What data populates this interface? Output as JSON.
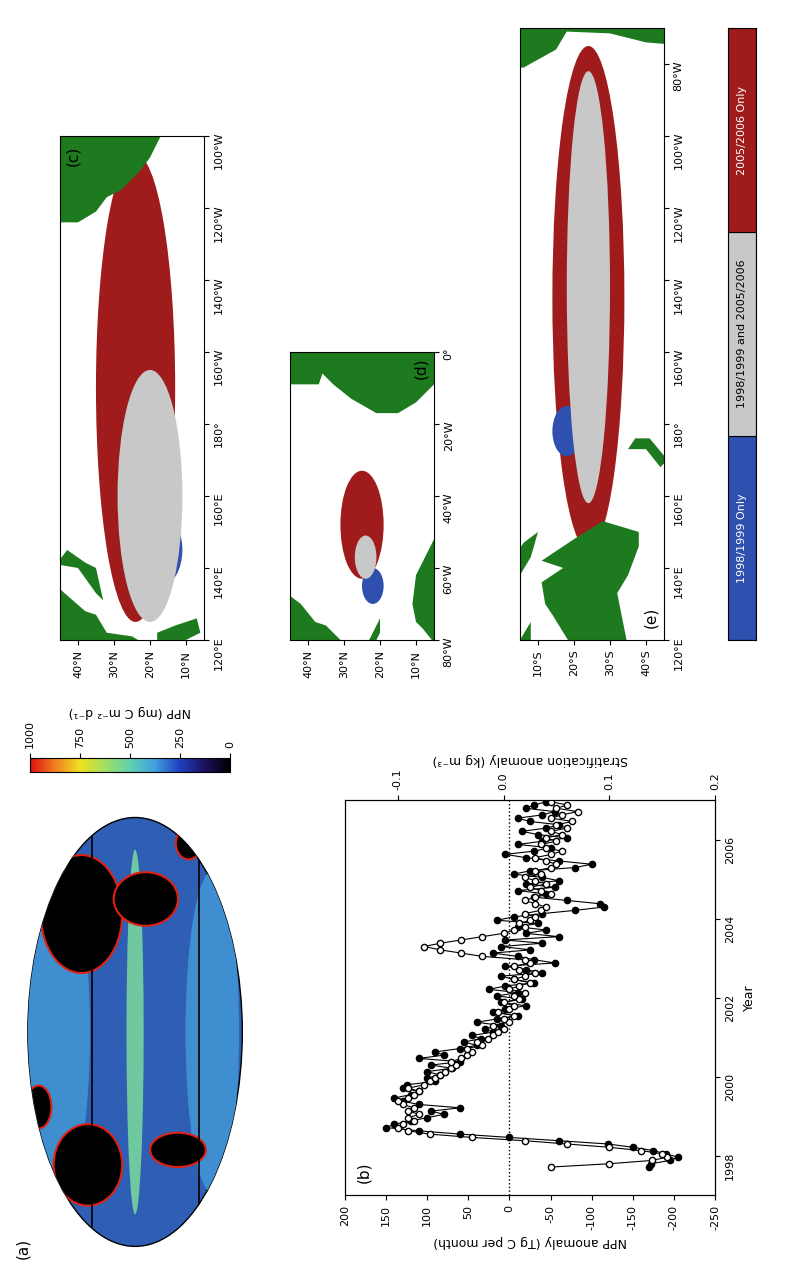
{
  "chart_data": [
    {
      "type": "map",
      "panel": "(a)",
      "colorbar_label": "NPP (mg C m⁻² d⁻¹)",
      "colorbar_range": [
        0,
        1000
      ],
      "colorbar_ticks": [
        0,
        250,
        500,
        750,
        1000
      ]
    },
    {
      "type": "line",
      "panel": "(b)",
      "x_label": "Year",
      "y_label": "NPP anomaly (Tg C per month)",
      "y2_label": "Stratification anomaly (kg m⁻³)",
      "xlim": [
        1997,
        2007
      ],
      "xticks": [
        1998,
        2000,
        2002,
        2004,
        2006
      ],
      "ylim": [
        -250,
        200
      ],
      "yticks": [
        -250,
        -200,
        -150,
        -100,
        -50,
        0,
        50,
        100,
        150,
        200
      ],
      "y2lim": [
        -0.15,
        0.2
      ],
      "y2ticks": [
        -0.1,
        0.0,
        0.1,
        0.2
      ],
      "reference_line": 0,
      "x": [
        1997.708,
        1997.792,
        1997.875,
        1997.958,
        1998.042,
        1998.125,
        1998.208,
        1998.292,
        1998.375,
        1998.458,
        1998.542,
        1998.625,
        1998.708,
        1998.792,
        1998.875,
        1998.958,
        1999.042,
        1999.125,
        1999.208,
        1999.292,
        1999.375,
        1999.458,
        1999.542,
        1999.625,
        1999.708,
        1999.792,
        1999.875,
        1999.958,
        2000.042,
        2000.125,
        2000.208,
        2000.292,
        2000.375,
        2000.458,
        2000.542,
        2000.625,
        2000.708,
        2000.792,
        2000.875,
        2000.958,
        2001.042,
        2001.125,
        2001.208,
        2001.292,
        2001.375,
        2001.458,
        2001.542,
        2001.625,
        2001.708,
        2001.792,
        2001.875,
        2001.958,
        2002.042,
        2002.125,
        2002.208,
        2002.292,
        2002.375,
        2002.458,
        2002.542,
        2002.625,
        2002.708,
        2002.792,
        2002.875,
        2002.958,
        2003.042,
        2003.125,
        2003.208,
        2003.292,
        2003.375,
        2003.458,
        2003.542,
        2003.625,
        2003.708,
        2003.792,
        2003.875,
        2003.958,
        2004.042,
        2004.125,
        2004.208,
        2004.292,
        2004.375,
        2004.458,
        2004.542,
        2004.625,
        2004.708,
        2004.792,
        2004.875,
        2004.958,
        2005.042,
        2005.125,
        2005.208,
        2005.292,
        2005.375,
        2005.458,
        2005.542,
        2005.625,
        2005.708,
        2005.792,
        2005.875,
        2005.958,
        2006.042,
        2006.125,
        2006.208,
        2006.292,
        2006.375,
        2006.458,
        2006.542,
        2006.625,
        2006.708,
        2006.792,
        2006.875,
        2006.958
      ],
      "series": [
        {
          "name": "NPP anomaly",
          "color": "#000000",
          "marker": "filled_circle",
          "line_style": "solid",
          "values": [
            -170,
            -172,
            -195,
            -205,
            -190,
            -175,
            -150,
            -120,
            -60,
            0,
            60,
            110,
            150,
            140,
            120,
            100,
            80,
            95,
            60,
            110,
            130,
            140,
            120,
            110,
            130,
            125,
            90,
            100,
            85,
            100,
            70,
            95,
            60,
            110,
            80,
            90,
            60,
            40,
            55,
            35,
            45,
            20,
            30,
            10,
            40,
            15,
            -10,
            20,
            5,
            -20,
            10,
            -15,
            15,
            -10,
            25,
            5,
            -30,
            -5,
            10,
            -40,
            -20,
            5,
            -55,
            -30,
            -10,
            20,
            -25,
            10,
            -40,
            5,
            -60,
            -20,
            -45,
            -10,
            -35,
            15,
            -5,
            -40,
            -80,
            -115,
            -110,
            -70,
            -30,
            -45,
            -10,
            -55,
            -20,
            -60,
            -40,
            -5,
            -25,
            -80,
            -100,
            -60,
            -20,
            5,
            -30,
            -50,
            -10,
            -40,
            -70,
            -35,
            -15,
            -45,
            -60,
            -25,
            -10,
            -40,
            -55,
            -20,
            -30,
            -45
          ]
        },
        {
          "name": "Stratification anomaly",
          "color": "#000000",
          "marker": "open_circle",
          "line_style": "solid",
          "axis": "y2",
          "values": [
            0.045,
            0.1,
            0.14,
            0.155,
            0.15,
            0.13,
            0.1,
            0.06,
            0.02,
            -0.03,
            -0.07,
            -0.09,
            -0.1,
            -0.095,
            -0.085,
            -0.09,
            -0.08,
            -0.09,
            -0.085,
            -0.095,
            -0.1,
            -0.09,
            -0.085,
            -0.08,
            -0.09,
            -0.075,
            -0.07,
            -0.065,
            -0.06,
            -0.055,
            -0.05,
            -0.045,
            -0.05,
            -0.04,
            -0.035,
            -0.03,
            -0.035,
            -0.02,
            -0.025,
            -0.015,
            -0.01,
            -0.005,
            0.0,
            -0.01,
            0.005,
            0.0,
            0.01,
            -0.005,
            0.005,
            0.01,
            0.0,
            0.015,
            0.01,
            0.02,
            0.005,
            0.015,
            0.025,
            0.01,
            0.02,
            0.03,
            0.015,
            0.01,
            0.025,
            0.02,
            -0.02,
            -0.04,
            -0.06,
            -0.075,
            -0.06,
            -0.04,
            -0.02,
            0.0,
            0.01,
            0.02,
            0.015,
            0.025,
            0.03,
            0.02,
            0.035,
            0.04,
            0.03,
            0.02,
            0.03,
            0.045,
            0.035,
            0.025,
            0.04,
            0.03,
            0.02,
            0.035,
            0.03,
            0.045,
            0.05,
            0.04,
            0.03,
            0.045,
            0.055,
            0.04,
            0.035,
            0.05,
            0.04,
            0.055,
            0.045,
            0.06,
            0.05,
            0.065,
            0.045,
            0.055,
            0.07,
            0.05,
            0.06,
            0.045
          ]
        }
      ]
    },
    {
      "type": "map",
      "panel": "(c)",
      "xlim": [
        120,
        260
      ],
      "xticks": [
        {
          "value": 120,
          "label": "120°E"
        },
        {
          "value": 140,
          "label": "140°E"
        },
        {
          "value": 160,
          "label": "160°E"
        },
        {
          "value": 180,
          "label": "180°"
        },
        {
          "value": 200,
          "label": "160°W"
        },
        {
          "value": 220,
          "label": "140°W"
        },
        {
          "value": 240,
          "label": "120°W"
        },
        {
          "value": 260,
          "label": "100°W"
        }
      ],
      "ylim": [
        5,
        45
      ],
      "yticks": [
        {
          "value": 10,
          "label": "10°N"
        },
        {
          "value": 20,
          "label": "20°N"
        },
        {
          "value": 30,
          "label": "30°N"
        },
        {
          "value": 40,
          "label": "40°N"
        }
      ]
    },
    {
      "type": "map",
      "panel": "(d)",
      "xlim": [
        -80,
        0
      ],
      "xticks": [
        {
          "value": -80,
          "label": "80°W"
        },
        {
          "value": -60,
          "label": "60°W"
        },
        {
          "value": -40,
          "label": "40°W"
        },
        {
          "value": -20,
          "label": "20°W"
        },
        {
          "value": 0,
          "label": "0°"
        }
      ],
      "ylim": [
        5,
        45
      ],
      "yticks": [
        {
          "value": 10,
          "label": "10°N"
        },
        {
          "value": 20,
          "label": "20°N"
        },
        {
          "value": 30,
          "label": "30°N"
        },
        {
          "value": 40,
          "label": "40°N"
        }
      ]
    },
    {
      "type": "map",
      "panel": "(e)",
      "xlim": [
        120,
        290
      ],
      "xticks": [
        {
          "value": 120,
          "label": "120°E"
        },
        {
          "value": 140,
          "label": "140°E"
        },
        {
          "value": 160,
          "label": "160°E"
        },
        {
          "value": 180,
          "label": "180°"
        },
        {
          "value": 200,
          "label": "160°W"
        },
        {
          "value": 220,
          "label": "140°W"
        },
        {
          "value": 240,
          "label": "120°W"
        },
        {
          "value": 260,
          "label": "100°W"
        },
        {
          "value": 280,
          "label": "80°W"
        }
      ],
      "ylim": [
        -45,
        -5
      ],
      "yticks": [
        {
          "value": -40,
          "label": "40°S"
        },
        {
          "value": -30,
          "label": "30°S"
        },
        {
          "value": -20,
          "label": "20°S"
        },
        {
          "value": -10,
          "label": "10°S"
        }
      ]
    },
    {
      "type": "legend",
      "categories": [
        "1998/1999 Only",
        "1998/1999 and 2005/2006",
        "2005/2006 Only"
      ],
      "colors": [
        "#3050b0",
        "#c8c8c8",
        "#a01c1c"
      ]
    }
  ]
}
